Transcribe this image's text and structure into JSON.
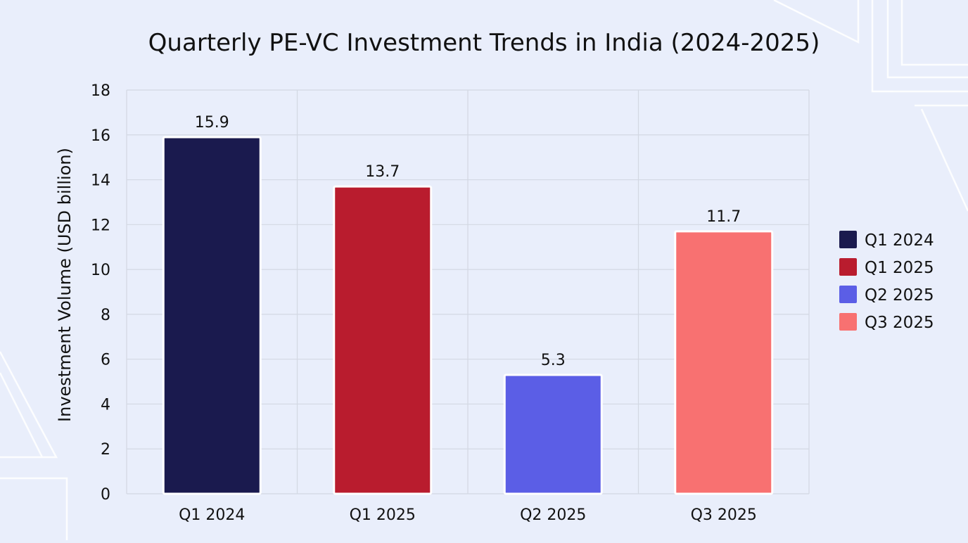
{
  "chart_data": {
    "type": "bar",
    "title": "Quarterly PE-VC Investment Trends in India (2024-2025)",
    "xlabel": "",
    "ylabel": "Investment Volume (USD billion)",
    "categories": [
      "Q1 2024",
      "Q1 2025",
      "Q2 2025",
      "Q3 2025"
    ],
    "values": [
      15.9,
      13.7,
      5.3,
      11.7
    ],
    "value_labels": [
      "15.9",
      "13.7",
      "5.3",
      "11.7"
    ],
    "ylim": [
      0,
      18
    ],
    "yticks": [
      0,
      2,
      4,
      6,
      8,
      10,
      12,
      14,
      16,
      18
    ],
    "grid": true,
    "legend": {
      "placement": "right",
      "entries": [
        "Q1 2024",
        "Q1 2025",
        "Q2 2025",
        "Q3 2025"
      ]
    },
    "colors": [
      "#1a1a4e",
      "#b91c2e",
      "#5b5ee6",
      "#f87171"
    ]
  },
  "theme": {
    "background": "#e9eefb",
    "plot_background": "#e9eefb",
    "grid_color": "#d3d8e3",
    "text_color": "#111111",
    "bar_border": "#ffffff"
  }
}
